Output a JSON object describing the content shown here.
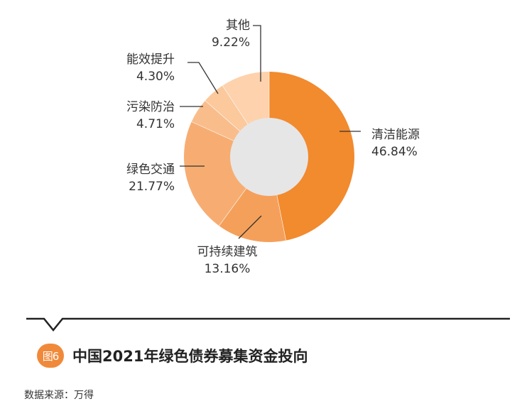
{
  "chart_data": {
    "type": "pie",
    "categories": [
      "清洁能源",
      "可持续建筑",
      "绿色交通",
      "污染防治",
      "能效提升",
      "其他"
    ],
    "values": [
      46.84,
      13.16,
      21.77,
      4.71,
      4.3,
      9.22
    ],
    "value_labels": [
      "46.84%",
      "13.16%",
      "21.77%",
      "4.71%",
      "4.30%",
      "9.22%"
    ],
    "colors": [
      "#f28a2e",
      "#f5a05a",
      "#f7ad72",
      "#f9bd8c",
      "#fbc99c",
      "#fdd2ad"
    ],
    "center_color": "#e6e6e6",
    "donut": true
  },
  "figure": {
    "badge": "图6",
    "title": "中国2021年绿色债券募集资金投向"
  },
  "source": "数据来源：万得"
}
